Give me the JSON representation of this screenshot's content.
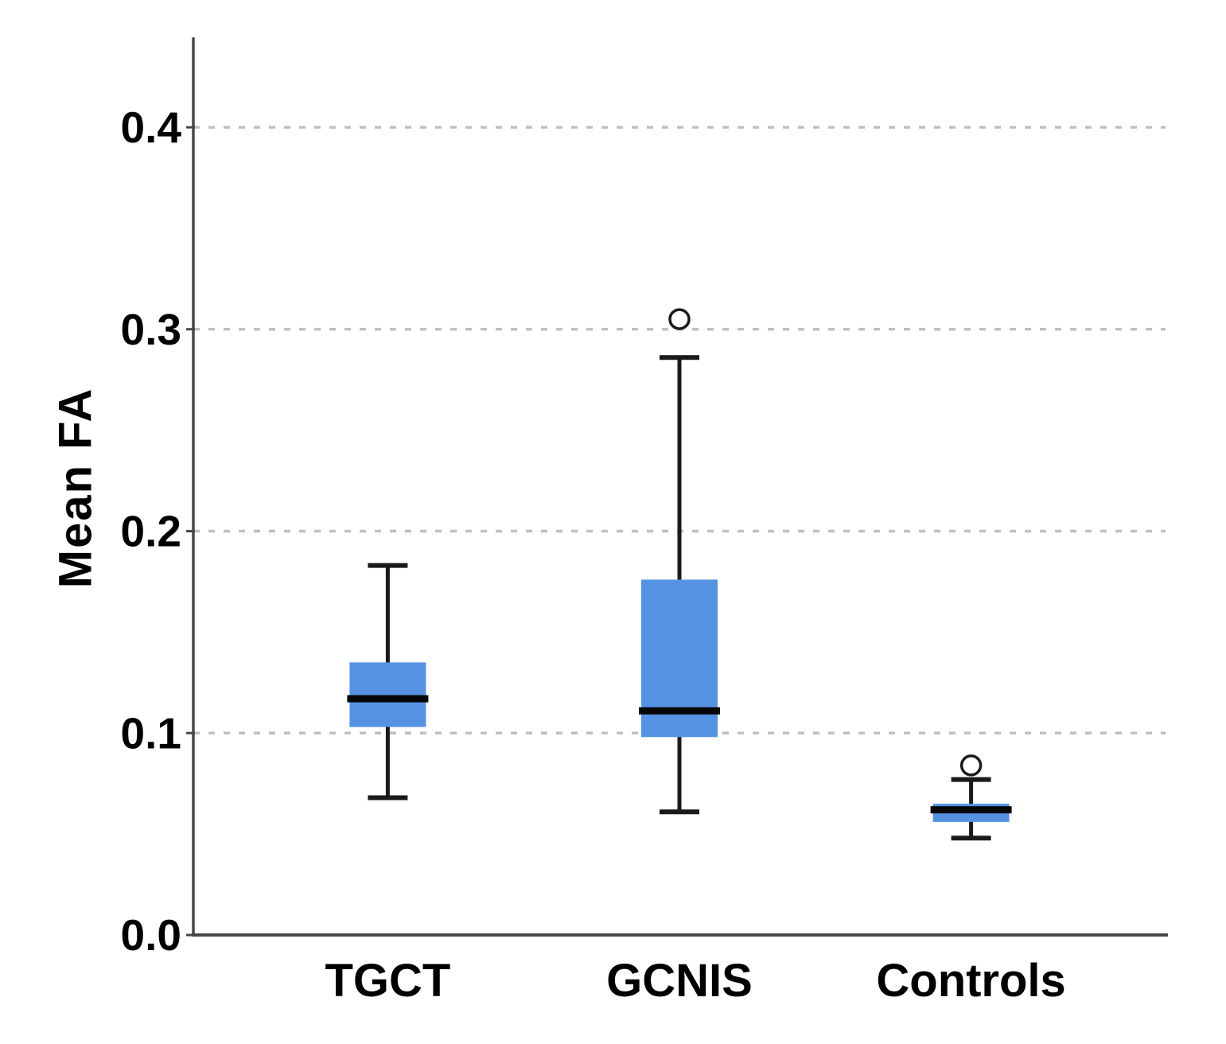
{
  "chart_data": {
    "type": "boxplot",
    "title": "",
    "xlabel": "",
    "ylabel": "Mean FA",
    "ylim": [
      0,
      0.4445
    ],
    "yticks": [
      0.0,
      0.1,
      0.2,
      0.3,
      0.4
    ],
    "ytick_labels": [
      "0.0",
      "0.1",
      "0.2",
      "0.3",
      "0.4"
    ],
    "grid": "horizontal dashed gridlines at 0.1, 0.2, 0.3, 0.4",
    "legend": "none",
    "categories": [
      "TGCT",
      "GCNIS",
      "Controls"
    ],
    "series": [
      {
        "name": "TGCT",
        "whisker_low": 0.068,
        "q1": 0.103,
        "median": 0.117,
        "q3": 0.135,
        "whisker_high": 0.183,
        "outliers": []
      },
      {
        "name": "GCNIS",
        "whisker_low": 0.061,
        "q1": 0.098,
        "median": 0.111,
        "q3": 0.176,
        "whisker_high": 0.286,
        "outliers": [
          0.305
        ]
      },
      {
        "name": "Controls",
        "whisker_low": 0.048,
        "q1": 0.056,
        "median": 0.062,
        "q3": 0.065,
        "whisker_high": 0.077,
        "outliers": [
          0.084
        ]
      }
    ],
    "colors": {
      "box_fill": "#5592e3",
      "median_line": "#050505",
      "whisker": "#1a1a1a",
      "outlier_stroke": "#1a1a1a",
      "gridline": "#c0c0c0",
      "axis": "#484848",
      "text": "#000000",
      "background": "#ffffff"
    }
  }
}
